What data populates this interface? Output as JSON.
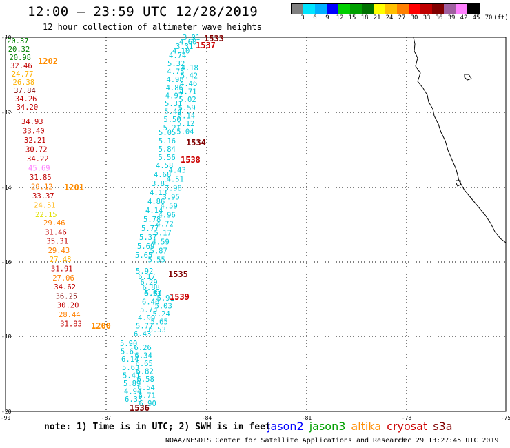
{
  "title": "12:00 – 23:59 UTC 12/28/2019",
  "subtitle": "12 hour collection of altimeter wave heights",
  "colorbar": {
    "colors": [
      "#808080",
      "#00e5ff",
      "#00b0ff",
      "#0000ff",
      "#00d000",
      "#00a000",
      "#007000",
      "#ffff00",
      "#ffc000",
      "#ff8000",
      "#ff0000",
      "#c00000",
      "#800000",
      "#a060a0",
      "#ff80ff",
      "#000000"
    ],
    "labels": [
      "3",
      "6",
      "9",
      "12",
      "15",
      "18",
      "21",
      "24",
      "27",
      "30",
      "33",
      "36",
      "39",
      "42",
      "45",
      "70",
      "(ft)"
    ]
  },
  "axes": {
    "lon_ticks": [
      "-90",
      "-87",
      "-84",
      "-81",
      "-78",
      "-75"
    ],
    "lat_ticks": [
      "-10",
      "-12",
      "-14",
      "-16",
      "-18",
      "-20"
    ]
  },
  "passes": [
    {
      "time": "1202",
      "color": "#ff8c00",
      "values": [
        {
          "v": "20.37",
          "c": "#008000"
        },
        {
          "v": "20.32",
          "c": "#008000"
        },
        {
          "v": "20.98",
          "c": "#008000"
        },
        {
          "v": "32.46",
          "c": "#c00000"
        },
        {
          "v": "24.77",
          "c": "#ffb000"
        },
        {
          "v": "26.38",
          "c": "#ffb000"
        },
        {
          "v": "37.84",
          "c": "#800000"
        },
        {
          "v": "34.26",
          "c": "#c00000"
        },
        {
          "v": "34.20",
          "c": "#c00000"
        }
      ]
    },
    {
      "time": "1201",
      "color": "#ff8c00",
      "values": [
        {
          "v": "34.93",
          "c": "#c00000"
        },
        {
          "v": "33.40",
          "c": "#c00000"
        },
        {
          "v": "32.21",
          "c": "#c00000"
        },
        {
          "v": "30.72",
          "c": "#c00000"
        },
        {
          "v": "34.22",
          "c": "#c00000"
        },
        {
          "v": "45.69",
          "c": "#ff80ff"
        },
        {
          "v": "31.85",
          "c": "#c00000"
        },
        {
          "v": "29.12",
          "c": "#ff8000"
        },
        {
          "v": "33.37",
          "c": "#c00000"
        },
        {
          "v": "24.51",
          "c": "#ffb000"
        },
        {
          "v": "22.15",
          "c": "#e0e000"
        }
      ]
    },
    {
      "time": "1200",
      "color": "#ff8c00",
      "values": [
        {
          "v": "29.46",
          "c": "#ff8000"
        },
        {
          "v": "31.46",
          "c": "#c00000"
        },
        {
          "v": "35.31",
          "c": "#c00000"
        },
        {
          "v": "29.43",
          "c": "#ff8000"
        },
        {
          "v": "27.48",
          "c": "#ffb000"
        },
        {
          "v": "31.91",
          "c": "#c00000"
        },
        {
          "v": "27.06",
          "c": "#ff8000"
        },
        {
          "v": "34.62",
          "c": "#c00000"
        },
        {
          "v": "36.25",
          "c": "#800000"
        },
        {
          "v": "30.20",
          "c": "#c00000"
        },
        {
          "v": "28.44",
          "c": "#ff8000"
        },
        {
          "v": "31.83",
          "c": "#c00000"
        }
      ]
    },
    {
      "time": "1533",
      "color": "#800000",
      "values": [
        {
          "v": "3.91",
          "c": "#00c8d8"
        },
        {
          "v": "4.60",
          "c": "#00c8d8"
        },
        {
          "v": "3.31",
          "c": "#00c8d8"
        },
        {
          "v": "4.10",
          "c": "#00c8d8"
        },
        {
          "v": "4.74",
          "c": "#00c8d8"
        }
      ]
    },
    {
      "time": "1537",
      "color": "#cc0000",
      "values": [
        {
          "v": "5.32",
          "c": "#00c8d8"
        },
        {
          "v": "4.18",
          "c": "#00c8d8"
        },
        {
          "v": "4.75",
          "c": "#00c8d8"
        },
        {
          "v": "5.42",
          "c": "#00c8d8"
        },
        {
          "v": "4.98",
          "c": "#00c8d8"
        },
        {
          "v": "4.46",
          "c": "#00c8d8"
        },
        {
          "v": "4.86",
          "c": "#00c8d8"
        },
        {
          "v": "4.71",
          "c": "#00c8d8"
        },
        {
          "v": "4.97",
          "c": "#00c8d8"
        },
        {
          "v": "5.02",
          "c": "#00c8d8"
        },
        {
          "v": "5.31",
          "c": "#00c8d8"
        },
        {
          "v": "5.59",
          "c": "#00c8d8"
        },
        {
          "v": "5.44",
          "c": "#00c8d8"
        },
        {
          "v": "5.14",
          "c": "#00c8d8"
        },
        {
          "v": "5.50",
          "c": "#00c8d8"
        },
        {
          "v": "5.12",
          "c": "#00c8d8"
        },
        {
          "v": "5.21",
          "c": "#00c8d8"
        },
        {
          "v": "5.04",
          "c": "#00c8d8"
        }
      ]
    },
    {
      "time": "1534",
      "color": "#800000",
      "values": [
        {
          "v": "5.05",
          "c": "#00c8d8"
        },
        {
          "v": "5.16",
          "c": "#00c8d8"
        },
        {
          "v": "5.84",
          "c": "#00c8d8"
        },
        {
          "v": "5.56",
          "c": "#00c8d8"
        }
      ]
    },
    {
      "time": "1538",
      "color": "#cc0000",
      "values": [
        {
          "v": "4.58",
          "c": "#00c8d8"
        },
        {
          "v": "4.43",
          "c": "#00c8d8"
        },
        {
          "v": "4.68",
          "c": "#00c8d8"
        },
        {
          "v": "4.51",
          "c": "#00c8d8"
        },
        {
          "v": "3.81",
          "c": "#00c8d8"
        },
        {
          "v": "3.98",
          "c": "#00c8d8"
        },
        {
          "v": "4.13",
          "c": "#00c8d8"
        },
        {
          "v": "3.95",
          "c": "#00c8d8"
        },
        {
          "v": "4.86",
          "c": "#00c8d8"
        },
        {
          "v": "4.59",
          "c": "#00c8d8"
        },
        {
          "v": "4.14",
          "c": "#00c8d8"
        },
        {
          "v": "4.96",
          "c": "#00c8d8"
        },
        {
          "v": "5.78",
          "c": "#00c8d8"
        },
        {
          "v": "4.72",
          "c": "#00c8d8"
        },
        {
          "v": "5.77",
          "c": "#00c8d8"
        },
        {
          "v": "5.17",
          "c": "#00c8d8"
        },
        {
          "v": "5.37",
          "c": "#00c8d8"
        },
        {
          "v": "4.59",
          "c": "#00c8d8"
        },
        {
          "v": "5.69",
          "c": "#00c8d8"
        },
        {
          "v": "5.87",
          "c": "#00c8d8"
        },
        {
          "v": "5.65",
          "c": "#00c8d8"
        },
        {
          "v": "5.55",
          "c": "#00c8d8"
        }
      ]
    },
    {
      "time": "1535",
      "color": "#800000",
      "values": [
        {
          "v": "5.92",
          "c": "#00c8d8"
        },
        {
          "v": "6.17",
          "c": "#00c8d8"
        },
        {
          "v": "6.29",
          "c": "#00c8d8"
        },
        {
          "v": "6.88",
          "c": "#00c8d8"
        },
        {
          "v": "5.84",
          "c": "#00c8d8"
        }
      ]
    },
    {
      "time": "1539",
      "color": "#cc0000",
      "values": [
        {
          "v": "6.51",
          "c": "#00c8d8"
        },
        {
          "v": "5.91",
          "c": "#00c8d8"
        },
        {
          "v": "6.46",
          "c": "#00c8d8"
        },
        {
          "v": "5.03",
          "c": "#00c8d8"
        },
        {
          "v": "5.75",
          "c": "#00c8d8"
        },
        {
          "v": "5.24",
          "c": "#00c8d8"
        },
        {
          "v": "4.99",
          "c": "#00c8d8"
        },
        {
          "v": "5.65",
          "c": "#00c8d8"
        },
        {
          "v": "5.77",
          "c": "#00c8d8"
        },
        {
          "v": "6.53",
          "c": "#00c8d8"
        },
        {
          "v": "6.43",
          "c": "#00c8d8"
        }
      ]
    },
    {
      "time": "1536",
      "color": "#800000",
      "values": [
        {
          "v": "5.90",
          "c": "#00c8d8"
        },
        {
          "v": "6.26",
          "c": "#00c8d8"
        },
        {
          "v": "5.61",
          "c": "#00c8d8"
        },
        {
          "v": "6.34",
          "c": "#00c8d8"
        },
        {
          "v": "6.14",
          "c": "#00c8d8"
        },
        {
          "v": "6.65",
          "c": "#00c8d8"
        },
        {
          "v": "5.63",
          "c": "#00c8d8"
        },
        {
          "v": "6.82",
          "c": "#00c8d8"
        },
        {
          "v": "5.41",
          "c": "#00c8d8"
        },
        {
          "v": "6.58",
          "c": "#00c8d8"
        },
        {
          "v": "5.89",
          "c": "#00c8d8"
        },
        {
          "v": "6.54",
          "c": "#00c8d8"
        },
        {
          "v": "4.94",
          "c": "#00c8d8"
        },
        {
          "v": "6.71",
          "c": "#00c8d8"
        },
        {
          "v": "6.33",
          "c": "#00c8d8"
        },
        {
          "v": "6.90",
          "c": "#00c8d8"
        }
      ]
    }
  ],
  "note": "note: 1) Time is in UTC; 2) SWH is in feet",
  "legend": [
    {
      "name": "jason2",
      "color": "#0000ff"
    },
    {
      "name": "jason3",
      "color": "#00a000"
    },
    {
      "name": "altika",
      "color": "#ff8c00"
    },
    {
      "name": "cryosat",
      "color": "#cc0000"
    },
    {
      "name": "s3a",
      "color": "#800000"
    }
  ],
  "footer_left": "NOAA/NESDIS Center for Satellite Applications and Research",
  "footer_right": "Dec 29 13:27:45 UTC 2019"
}
